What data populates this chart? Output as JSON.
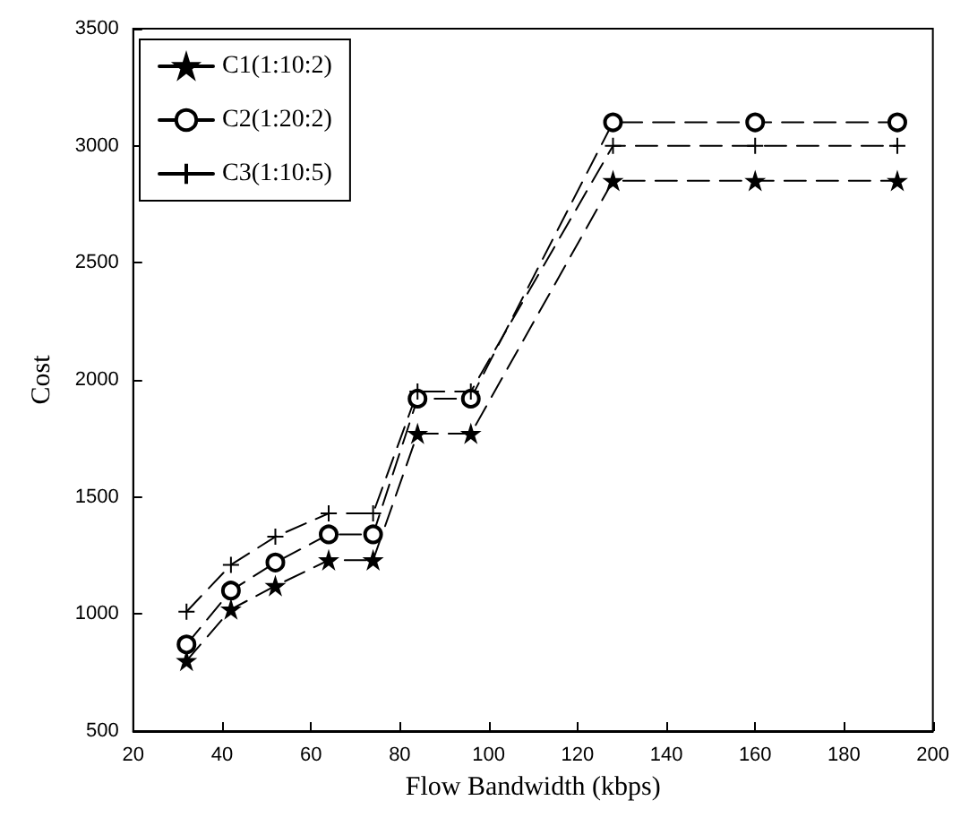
{
  "chart_data": {
    "type": "line",
    "xlabel": "Flow Bandwidth (kbps)",
    "ylabel": "Cost",
    "x": [
      32,
      42,
      52,
      64,
      74,
      84,
      96,
      128,
      160,
      192
    ],
    "series": [
      {
        "name": "C1(1:10:2)",
        "color": "#000000",
        "marker": "star",
        "values": [
          800,
          1020,
          1120,
          1230,
          1230,
          1770,
          1770,
          2850,
          2850,
          2850
        ]
      },
      {
        "name": "C2(1:20:2)",
        "color": "#000000",
        "marker": "circle",
        "values": [
          870,
          1100,
          1220,
          1340,
          1340,
          1920,
          1920,
          3100,
          3100,
          3100
        ]
      },
      {
        "name": "C3(1:10:5)",
        "color": "#000000",
        "marker": "cross",
        "values": [
          1010,
          1210,
          1330,
          1430,
          1430,
          1950,
          1950,
          3000,
          3000,
          3000
        ]
      }
    ],
    "xlim": [
      20,
      200
    ],
    "xticks": [
      20,
      40,
      60,
      80,
      100,
      120,
      140,
      160,
      180,
      200
    ],
    "ylim": [
      500,
      3500
    ],
    "yticks": [
      500,
      1000,
      1500,
      2000,
      2500,
      3000,
      3500
    ],
    "line_style": "dashed",
    "grid": false,
    "legend": "top left"
  }
}
